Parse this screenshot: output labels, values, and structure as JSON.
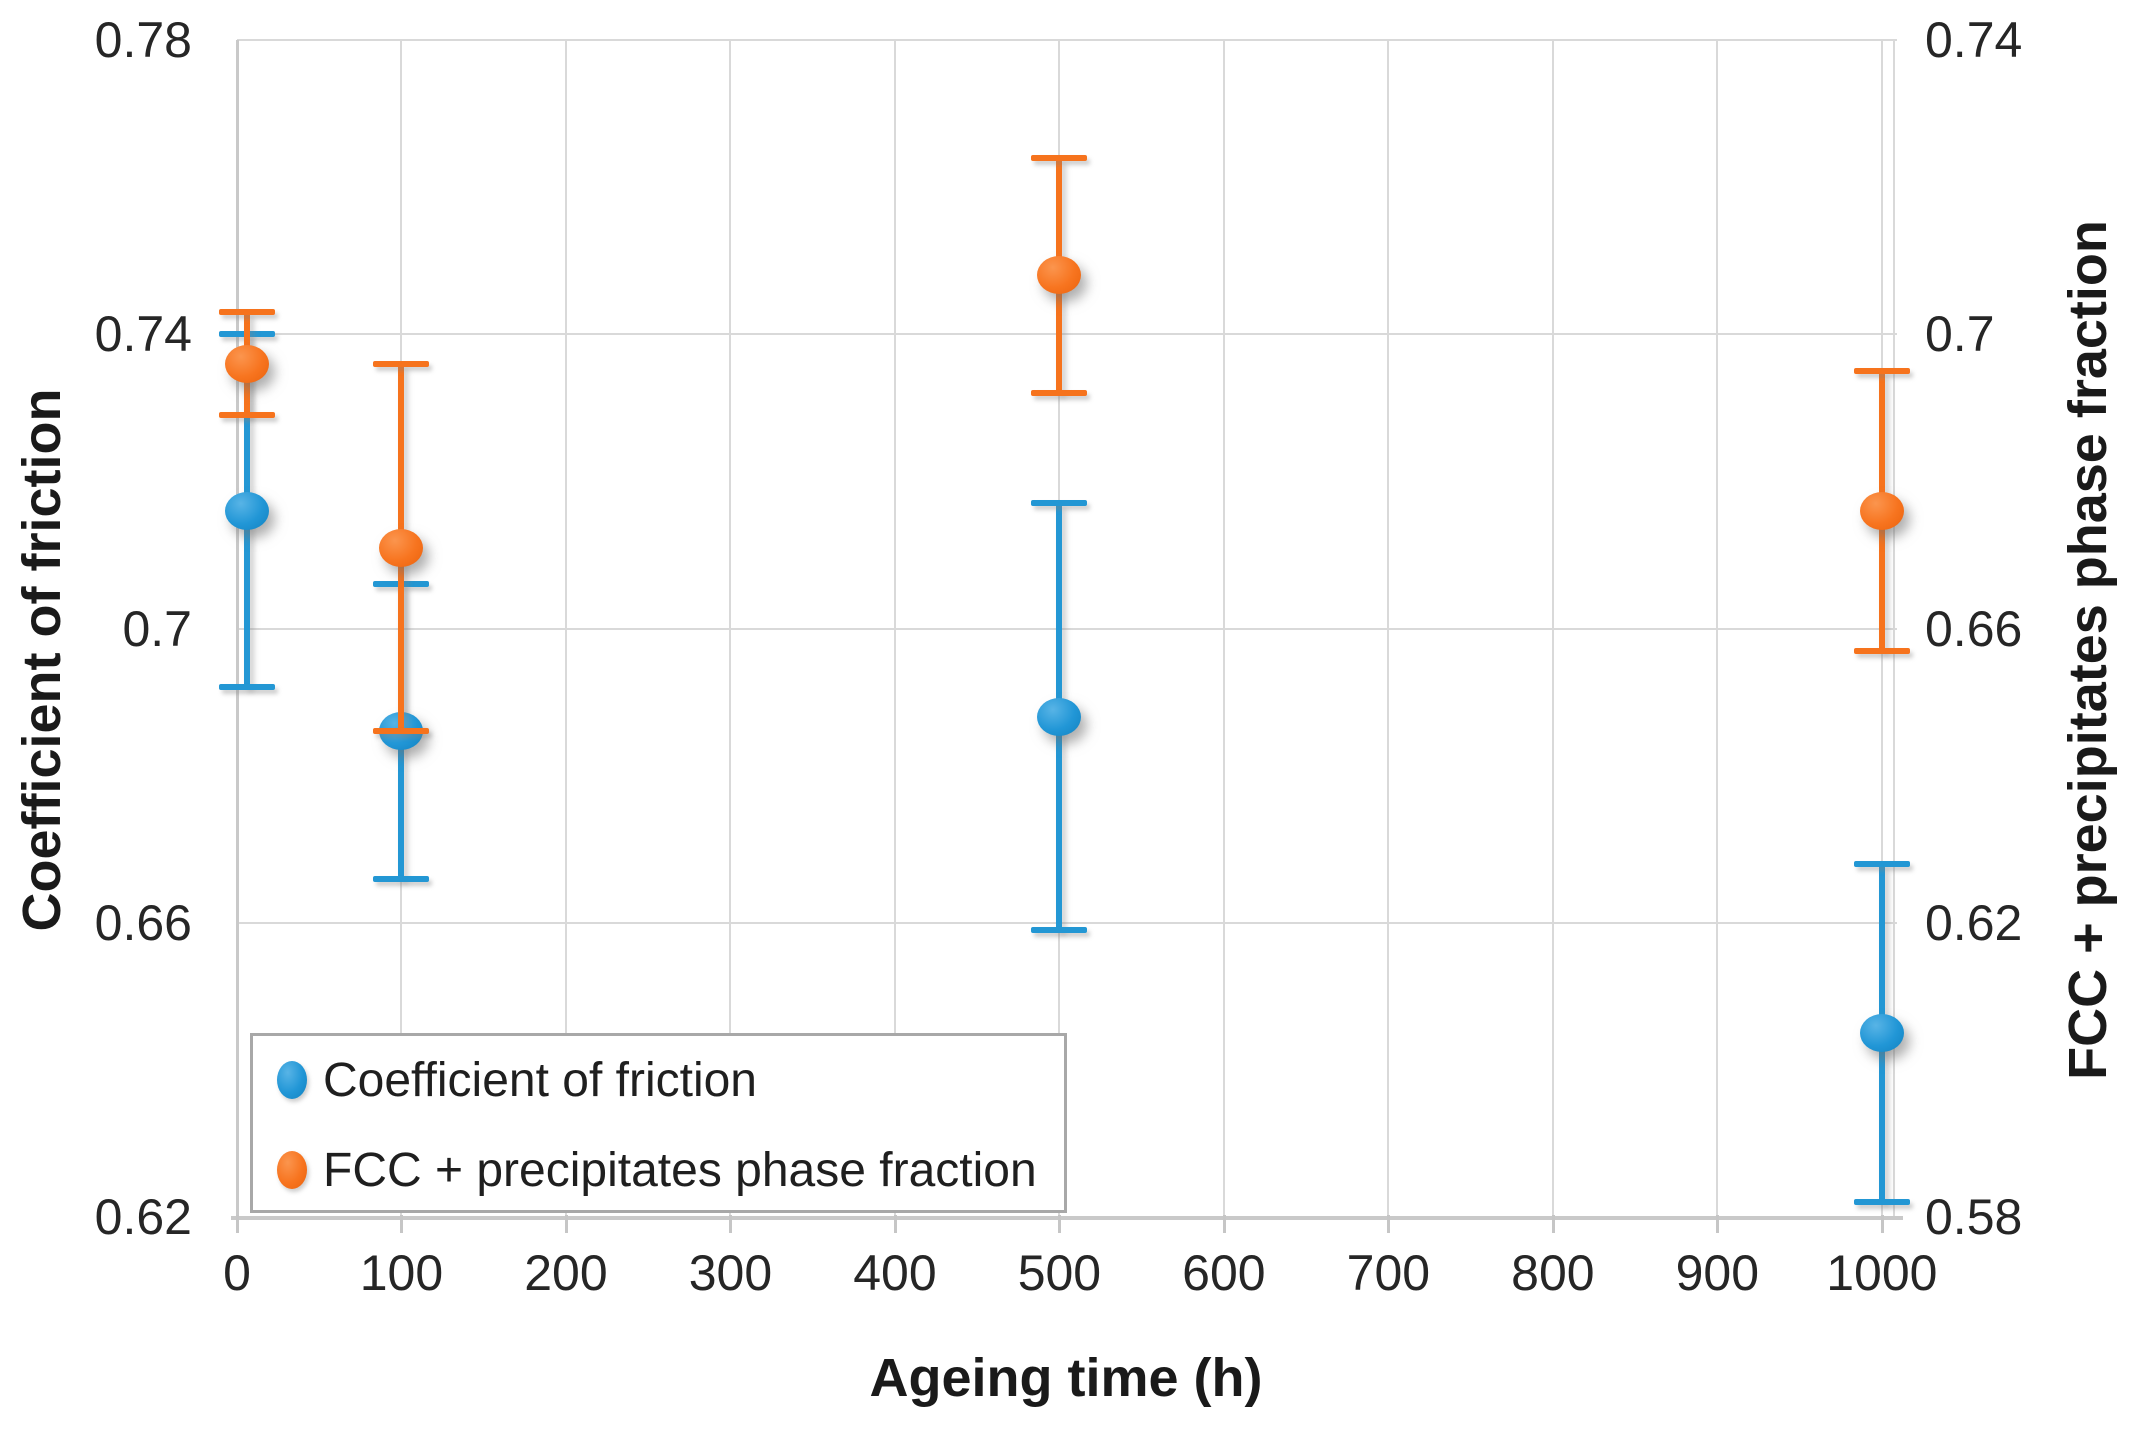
{
  "chart_data": {
    "type": "scatter",
    "title": "",
    "xlabel": "Ageing time (h)",
    "x": [
      0,
      100,
      500,
      1000
    ],
    "x_ticks": [
      0,
      100,
      200,
      300,
      400,
      500,
      600,
      700,
      800,
      900,
      1000
    ],
    "x_axis": {
      "min": 0,
      "max": 1000,
      "plot_max": 1008,
      "first_point_plot_offset": 6
    },
    "left_axis": {
      "label": "Coefficient of friction",
      "min": 0.62,
      "max": 0.78,
      "ticks": [
        "0.78",
        "0.74",
        "0.7",
        "0.66",
        "0.62"
      ]
    },
    "right_axis": {
      "label": "FCC + precipitates phase fraction",
      "min": 0.58,
      "max": 0.74,
      "ticks": [
        "0.74",
        "0.7",
        "0.66",
        "0.62",
        "0.58"
      ]
    },
    "grid": true,
    "legend": {
      "position": "bottom-left"
    },
    "series": [
      {
        "name": "Coefficient of friction",
        "axis": "left",
        "marker": "circle",
        "color": "#2397d4",
        "values": [
          0.716,
          0.686,
          0.688,
          0.645
        ],
        "errors": [
          0.024,
          0.02,
          0.029,
          0.023
        ]
      },
      {
        "name": "FCC + precipitates phase fraction",
        "axis": "right",
        "marker": "circle",
        "color": "#f6731d",
        "values": [
          0.696,
          0.671,
          0.708,
          0.676
        ],
        "errors": [
          0.007,
          0.025,
          0.016,
          0.019
        ]
      }
    ]
  }
}
